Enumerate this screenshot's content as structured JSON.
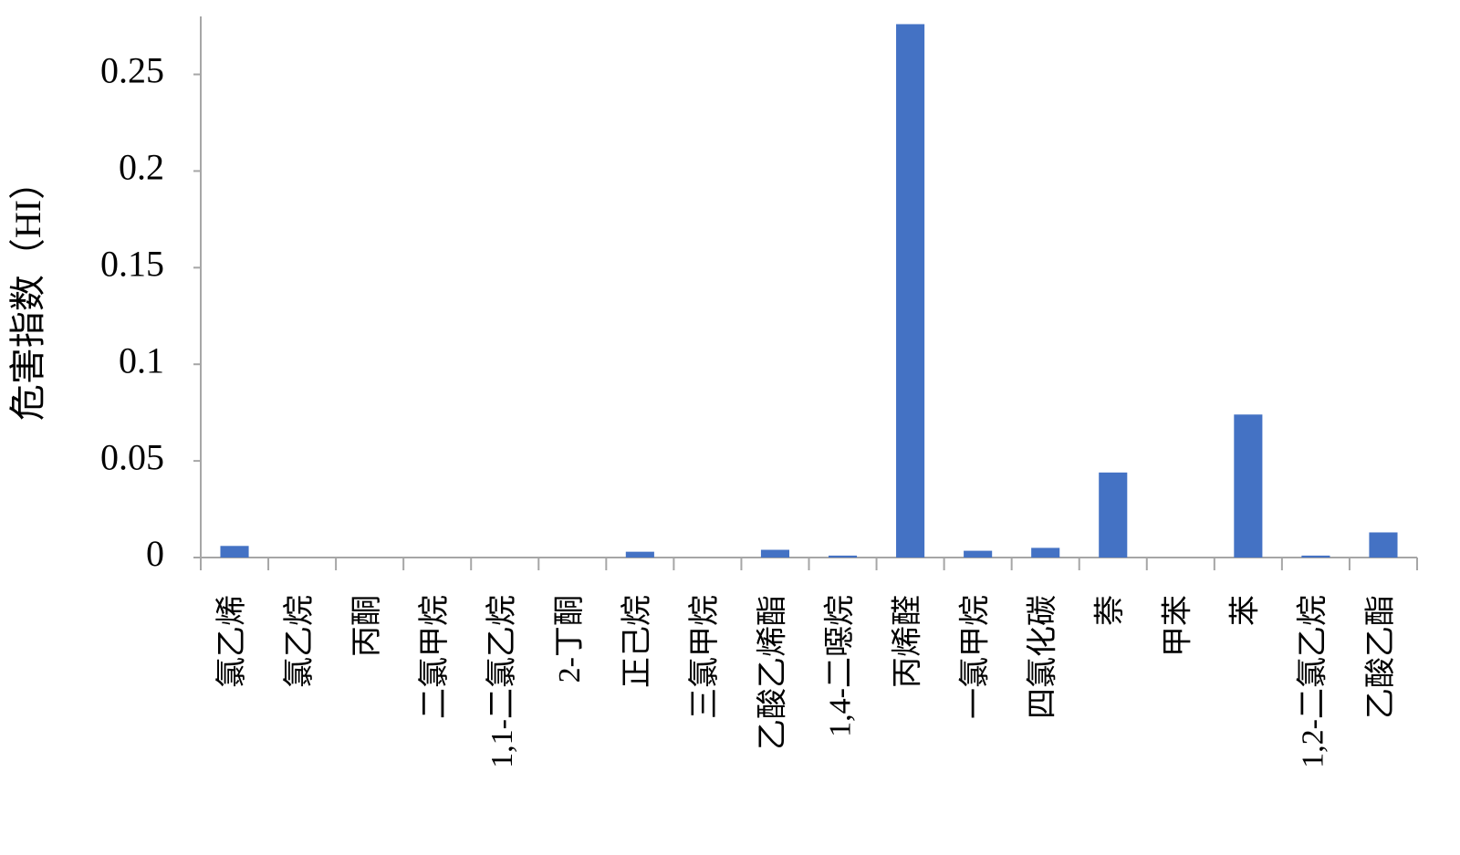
{
  "chart_data": {
    "type": "bar",
    "y_label": "危害指数（HI）",
    "categories": [
      "氯乙烯",
      "氯乙烷",
      "丙酮",
      "二氯甲烷",
      "1,1-二氯乙烷",
      "2-丁酮",
      "正己烷",
      "三氯甲烷",
      "乙酸乙烯酯",
      "1,4-二噁烷",
      "丙烯醛",
      "一氯甲烷",
      "四氯化碳",
      "萘",
      "甲苯",
      "苯",
      "1,2-二氯乙烷",
      "乙酸乙酯"
    ],
    "values": [
      0.006,
      0,
      0,
      0,
      0,
      0,
      0.003,
      0,
      0.004,
      0.001,
      0.276,
      0.0035,
      0.005,
      0.044,
      0,
      0.074,
      0.001,
      0.013
    ],
    "color": "#4472c4",
    "ylim": [
      0,
      0.28
    ],
    "yticks": [
      0,
      0.05,
      0.1,
      0.15,
      0.2,
      0.25
    ]
  }
}
